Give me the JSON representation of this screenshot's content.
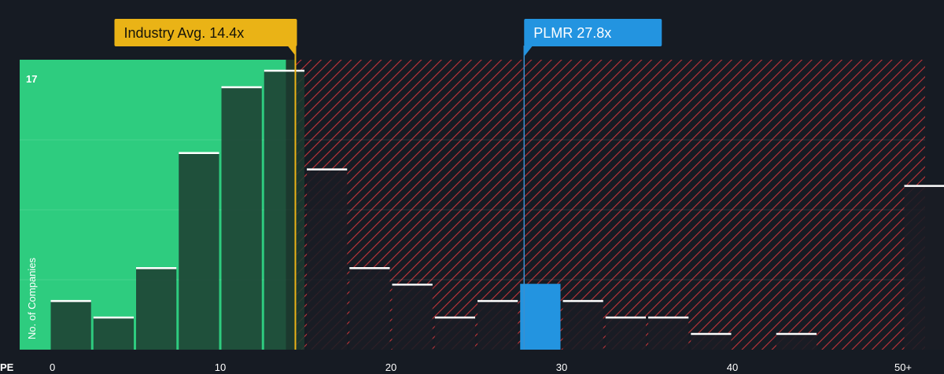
{
  "chart_data": {
    "type": "bar",
    "title": "",
    "xlabel": "PE",
    "ylabel": "No. of Companies",
    "ylim": [
      0,
      17
    ],
    "y_max_label": "17",
    "grid": true,
    "x_ticks": [
      {
        "value": 0,
        "label": "0"
      },
      {
        "value": 10,
        "label": "10"
      },
      {
        "value": 20,
        "label": "20"
      },
      {
        "value": 30,
        "label": "30"
      },
      {
        "value": 40,
        "label": "40"
      },
      {
        "value": 50,
        "label": "50+"
      }
    ],
    "bins": [
      {
        "start": 0,
        "end": 2.5,
        "count": 3
      },
      {
        "start": 2.5,
        "end": 5,
        "count": 2
      },
      {
        "start": 5,
        "end": 7.5,
        "count": 5
      },
      {
        "start": 7.5,
        "end": 10,
        "count": 12
      },
      {
        "start": 10,
        "end": 12.5,
        "count": 16
      },
      {
        "start": 12.5,
        "end": 15,
        "count": 17
      },
      {
        "start": 15,
        "end": 17.5,
        "count": 11
      },
      {
        "start": 17.5,
        "end": 20,
        "count": 5
      },
      {
        "start": 20,
        "end": 22.5,
        "count": 4
      },
      {
        "start": 22.5,
        "end": 25,
        "count": 2
      },
      {
        "start": 25,
        "end": 27.5,
        "count": 3
      },
      {
        "start": 27.5,
        "end": 30,
        "count": 4,
        "highlight": true
      },
      {
        "start": 30,
        "end": 32.5,
        "count": 3
      },
      {
        "start": 32.5,
        "end": 35,
        "count": 2
      },
      {
        "start": 35,
        "end": 37.5,
        "count": 2
      },
      {
        "start": 37.5,
        "end": 40,
        "count": 1
      },
      {
        "start": 40,
        "end": 42.5,
        "count": 0
      },
      {
        "start": 42.5,
        "end": 45,
        "count": 1
      },
      {
        "start": 45,
        "end": 47.5,
        "count": 0
      },
      {
        "start": 47.5,
        "end": 50,
        "count": 0
      },
      {
        "start": 50,
        "end": 52.5,
        "count": 10
      }
    ],
    "industry_avg": {
      "value": 14.4,
      "label": "Industry Avg. 14.4x"
    },
    "company": {
      "name": "PLMR",
      "value": 27.8,
      "label": "PLMR 27.8x"
    },
    "colors": {
      "background": "#161b23",
      "undervalued_zone": "#2ecc7f",
      "overvalued_hatch": "#e0383d",
      "bar_fill": "#1c3a2f",
      "bar_fill_overvalued": "#1a1d24",
      "bar_top": "#ffffff",
      "industry_tag": "#eab316",
      "company_tag": "#2394e0",
      "text": "#ffffff"
    }
  }
}
